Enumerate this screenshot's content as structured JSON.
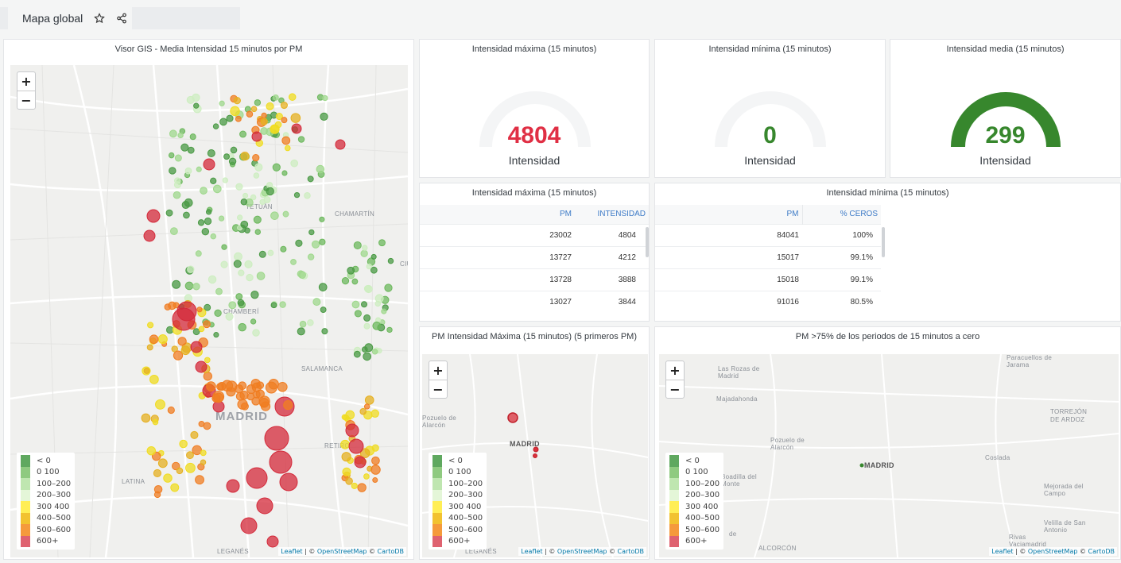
{
  "header": {
    "title": "Mapa global",
    "star_icon": "star-icon",
    "share_icon": "share-icon"
  },
  "legend": {
    "items": [
      {
        "label": "< 0",
        "color": "#5fa85f"
      },
      {
        "label": "0  100",
        "color": "#8fca80"
      },
      {
        "label": "100–200",
        "color": "#bfe6b0"
      },
      {
        "label": "200–300",
        "color": "#e4f6d8"
      },
      {
        "label": "300  400",
        "color": "#ffee55"
      },
      {
        "label": "400–500",
        "color": "#f2c230"
      },
      {
        "label": "500–600",
        "color": "#f59a3c"
      },
      {
        "label": "600+",
        "color": "#df6270"
      }
    ]
  },
  "attribution": {
    "leaflet": "Leaflet",
    "osm": "OpenStreetMap",
    "carto": "CartoDB",
    "sep": " | © ",
    "sep2": " © "
  },
  "panel_gis": {
    "title": "Visor GIS - Media Intensidad 15 minutos por PM",
    "labels": {
      "tetuan": "TETUÁN",
      "chamartin": "CHAMARTÍN",
      "chamberi": "CHAMBERÍ",
      "salamanca": "SALAMANCA",
      "madrid": "MADRID",
      "retiro": "RETIRO",
      "latina": "LATINA",
      "leganes": "LEGANÉS",
      "ciudad": "CIU"
    }
  },
  "gauges": [
    {
      "title": "Intensidad máxima (15 minutos)",
      "value": "4804",
      "unit": "Intensidad",
      "color": "#e02f44",
      "fraction": 0
    },
    {
      "title": "Intensidad mínima (15 minutos)",
      "value": "0",
      "unit": "Intensidad",
      "color": "#37872d",
      "fraction": 0
    },
    {
      "title": "Intensidad media (15 minutos)",
      "value": "299",
      "unit": "Intensidad",
      "color": "#37872d",
      "fraction": 1
    }
  ],
  "table_max": {
    "title": "Intensidad máxima (15 minutos)",
    "columns": [
      "PM",
      "INTENSIDAD"
    ],
    "rows": [
      [
        "23002",
        "4804"
      ],
      [
        "13727",
        "4212"
      ],
      [
        "13728",
        "3888"
      ],
      [
        "13027",
        "3844"
      ]
    ]
  },
  "table_min": {
    "title": "Intensidad mínima (15 minutos)",
    "columns": [
      "PM",
      "% CEROS"
    ],
    "rows": [
      [
        "84041",
        "100%"
      ],
      [
        "15017",
        "99.1%"
      ],
      [
        "15018",
        "99.1%"
      ],
      [
        "91016",
        "80.5%"
      ]
    ]
  },
  "map_top5": {
    "title": "PM Intensidad Máxima (15 minutos) (5 primeros PM)",
    "labels": {
      "pozuelo": "Pozuelo de\nAlarcón",
      "madrid": "MADRID",
      "leganes": "LEGANÉS"
    }
  },
  "map_zeros": {
    "title": "PM >75% de los periodos de 15 minutos a cero",
    "labels": {
      "rozas": "Las Rozas de\nMadrid",
      "majadahonda": "Majadahonda",
      "pozuelo": "Pozuelo de\nAlarcón",
      "madrid": "MADRID",
      "paracuellos": "Paracuellos de\nJarama",
      "torrejon": "TORREJÓN\nDE ARDOZ",
      "coslada": "Coslada",
      "mejorada": "Mejorada del\nCampo",
      "boadilla": "Boadilla del\nMonte",
      "velilla": "Velilla de San\nAntonio",
      "rivas": "Rivas\nVaciamadrid",
      "alcorcon": "ALCORCÓN",
      "de": "de"
    }
  }
}
